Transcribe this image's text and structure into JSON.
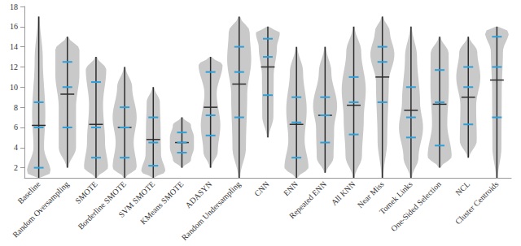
{
  "chart_data": {
    "type": "violin",
    "categories": [
      "Baseline",
      "Random Oversampling",
      "SMOTE",
      "Borderline SMOTE",
      "SVM SMOTE",
      "KMeans SMOTE",
      "ADASYN",
      "Random Undersampling",
      "CNN",
      "ENN",
      "Repeated ENN",
      "All KNN",
      "Near Miss",
      "Tomek Links",
      "One-Sided Selection",
      "NCL",
      "Cluster Centroids"
    ],
    "min": [
      1,
      2,
      1,
      1,
      1,
      2,
      2,
      1,
      5,
      1,
      1.5,
      1,
      1,
      1,
      2,
      3,
      1
    ],
    "q1": [
      2,
      6,
      3,
      3,
      2.2,
      3.5,
      5.2,
      7,
      9.2,
      3,
      4.5,
      5.3,
      8.5,
      5,
      4.2,
      6.3,
      7
    ],
    "median": [
      6,
      10,
      6,
      6,
      4.5,
      4.5,
      7.2,
      11.5,
      13,
      6.5,
      7.2,
      8.5,
      12.5,
      7,
      8.5,
      10,
      12
    ],
    "mean": [
      6.2,
      9.3,
      6.3,
      6,
      4.8,
      4.5,
      8,
      10.3,
      12,
      6.3,
      7.2,
      8.2,
      11,
      7.7,
      8.3,
      9,
      10.7
    ],
    "q3": [
      8.5,
      12.5,
      10.5,
      8,
      7,
      5.5,
      11.5,
      14,
      14.8,
      9,
      9,
      11,
      14,
      10,
      11.7,
      12,
      15
    ],
    "max": [
      17,
      15,
      13,
      12,
      10,
      7,
      13,
      17,
      16,
      14,
      14,
      16,
      17,
      16,
      15,
      15,
      16
    ],
    "color": "#c9c9c9",
    "ylim": [
      1,
      18
    ],
    "yticks": [
      2,
      4,
      6,
      8,
      10,
      12,
      14,
      16,
      18
    ],
    "grid": false
  }
}
